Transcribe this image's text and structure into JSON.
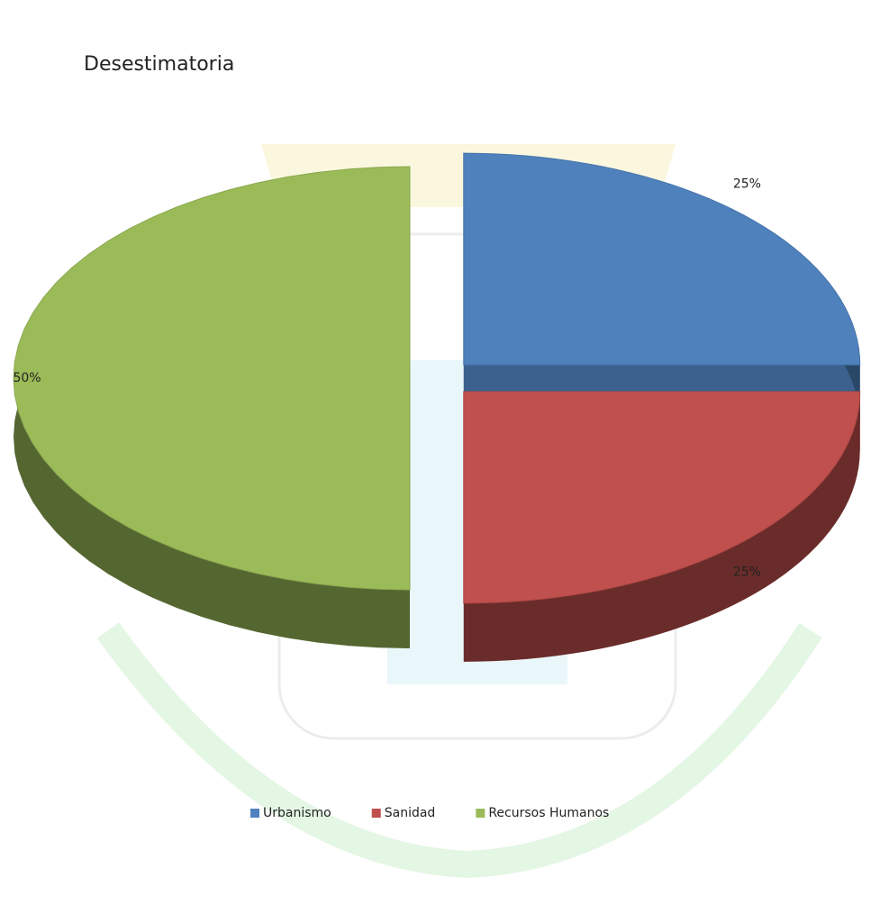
{
  "chart_data": {
    "type": "pie",
    "title": "Desestimatoria",
    "categories": [
      "Urbanismo",
      "Sanidad",
      "Recursos Humanos"
    ],
    "values": [
      25,
      25,
      50
    ],
    "value_labels": [
      "25%",
      "25%",
      "50%"
    ],
    "colors": [
      "#4f81bd",
      "#c0504d",
      "#9bbb59"
    ],
    "legend": "bottom"
  }
}
